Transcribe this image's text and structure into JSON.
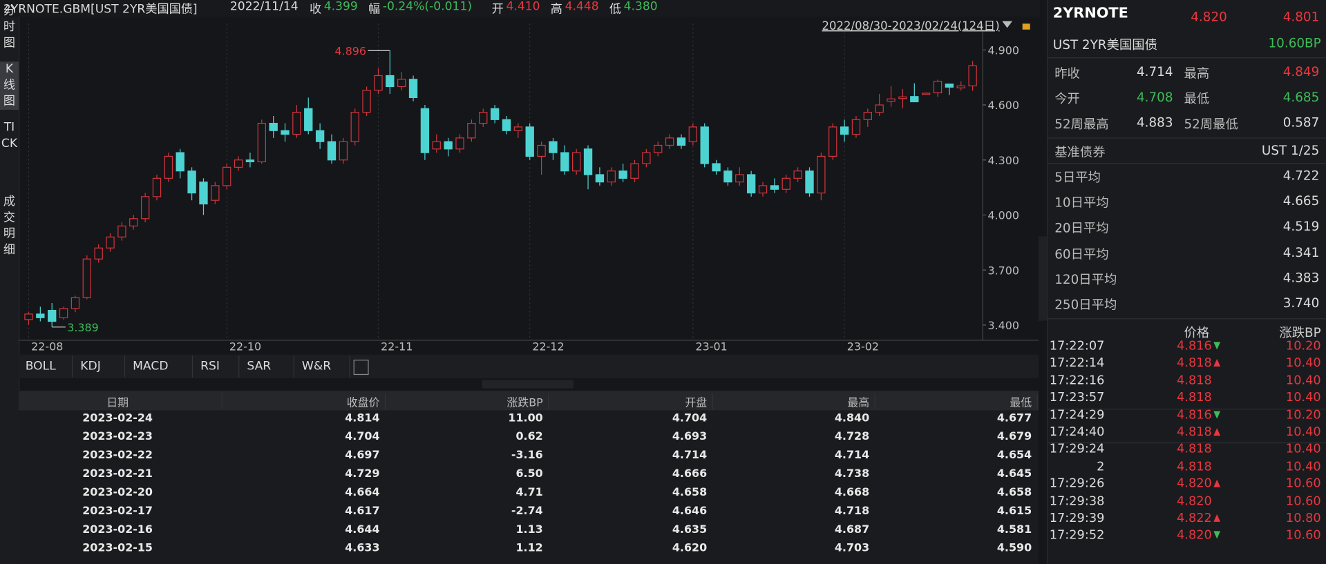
{
  "header": {
    "symbol": "2YRNOTE.GBM[UST 2YR美国国债]",
    "date": "2022/11/14",
    "items": [
      {
        "label": "收",
        "value": "4.399",
        "color": "#3dbb5a"
      },
      {
        "label": "幅",
        "value": "-0.24%(-0.011)",
        "color": "#3dbb5a"
      },
      {
        "label": "开",
        "value": "4.410",
        "color": "#e8373f"
      },
      {
        "label": "高",
        "value": "4.448",
        "color": "#e8373f"
      },
      {
        "label": "低",
        "value": "4.380",
        "color": "#3dbb5a"
      }
    ]
  },
  "side_tabs": [
    "分时图",
    "K线图",
    "TICK",
    "成交明细"
  ],
  "chart_data": {
    "type": "candlestick",
    "date_range": "2022/08/30-2023/02/24(124日)",
    "up_color": "#d3343c",
    "down_color": "#4ed3d3",
    "grid": true,
    "categories": [
      "22-08",
      null,
      null,
      null,
      null,
      null,
      null,
      null,
      null,
      null,
      null,
      null,
      null,
      null,
      null,
      null,
      null,
      "22-10",
      null,
      null,
      null,
      null,
      null,
      null,
      null,
      null,
      null,
      null,
      null,
      null,
      "22-11",
      null,
      null,
      null,
      null,
      null,
      null,
      null,
      null,
      null,
      null,
      null,
      null,
      "22-12",
      null,
      null,
      null,
      null,
      null,
      null,
      null,
      null,
      null,
      null,
      null,
      null,
      null,
      "23-01",
      null,
      null,
      null,
      null,
      null,
      null,
      null,
      null,
      null,
      null,
      null,
      null,
      "23-02",
      null,
      null,
      null,
      null,
      null,
      null,
      null,
      null,
      null,
      null,
      null
    ],
    "candles": [
      [
        3.43,
        3.47,
        3.4,
        3.46
      ],
      [
        3.46,
        3.5,
        3.42,
        3.44
      ],
      [
        3.48,
        3.52,
        3.389,
        3.42
      ],
      [
        3.44,
        3.5,
        3.43,
        3.49
      ],
      [
        3.49,
        3.56,
        3.47,
        3.55
      ],
      [
        3.55,
        3.78,
        3.54,
        3.76
      ],
      [
        3.76,
        3.84,
        3.74,
        3.82
      ],
      [
        3.82,
        3.9,
        3.8,
        3.88
      ],
      [
        3.88,
        3.96,
        3.86,
        3.94
      ],
      [
        3.94,
        4.0,
        3.92,
        3.98
      ],
      [
        3.98,
        4.12,
        3.96,
        4.1
      ],
      [
        4.1,
        4.22,
        4.08,
        4.2
      ],
      [
        4.2,
        4.34,
        4.18,
        4.32
      ],
      [
        4.34,
        4.36,
        4.2,
        4.24
      ],
      [
        4.24,
        4.26,
        4.08,
        4.12
      ],
      [
        4.18,
        4.2,
        4.0,
        4.06
      ],
      [
        4.08,
        4.18,
        4.06,
        4.16
      ],
      [
        4.16,
        4.28,
        4.14,
        4.26
      ],
      [
        4.26,
        4.32,
        4.24,
        4.3
      ],
      [
        4.3,
        4.34,
        4.26,
        4.29
      ],
      [
        4.29,
        4.52,
        4.28,
        4.5
      ],
      [
        4.5,
        4.54,
        4.42,
        4.46
      ],
      [
        4.46,
        4.5,
        4.4,
        4.44
      ],
      [
        4.44,
        4.6,
        4.42,
        4.56
      ],
      [
        4.58,
        4.64,
        4.44,
        4.46
      ],
      [
        4.46,
        4.5,
        4.36,
        4.4
      ],
      [
        4.4,
        4.44,
        4.28,
        4.3
      ],
      [
        4.3,
        4.42,
        4.28,
        4.4
      ],
      [
        4.4,
        4.58,
        4.38,
        4.56
      ],
      [
        4.56,
        4.7,
        4.54,
        4.68
      ],
      [
        4.68,
        4.8,
        4.66,
        4.76
      ],
      [
        4.76,
        4.896,
        4.66,
        4.7
      ],
      [
        4.7,
        4.78,
        4.68,
        4.74
      ],
      [
        4.74,
        4.76,
        4.62,
        4.64
      ],
      [
        4.58,
        4.6,
        4.3,
        4.34
      ],
      [
        4.36,
        4.44,
        4.34,
        4.4
      ],
      [
        4.4,
        4.42,
        4.32,
        4.36
      ],
      [
        4.36,
        4.44,
        4.34,
        4.42
      ],
      [
        4.42,
        4.52,
        4.4,
        4.5
      ],
      [
        4.5,
        4.58,
        4.48,
        4.56
      ],
      [
        4.58,
        4.6,
        4.5,
        4.52
      ],
      [
        4.52,
        4.54,
        4.44,
        4.46
      ],
      [
        4.46,
        4.5,
        4.42,
        4.48
      ],
      [
        4.48,
        4.5,
        4.3,
        4.32
      ],
      [
        4.32,
        4.4,
        4.22,
        4.38
      ],
      [
        4.4,
        4.42,
        4.3,
        4.34
      ],
      [
        4.34,
        4.38,
        4.22,
        4.24
      ],
      [
        4.24,
        4.36,
        4.22,
        4.34
      ],
      [
        4.36,
        4.38,
        4.14,
        4.22
      ],
      [
        4.22,
        4.26,
        4.16,
        4.18
      ],
      [
        4.18,
        4.26,
        4.16,
        4.24
      ],
      [
        4.24,
        4.28,
        4.18,
        4.2
      ],
      [
        4.2,
        4.3,
        4.18,
        4.28
      ],
      [
        4.28,
        4.36,
        4.26,
        4.34
      ],
      [
        4.34,
        4.4,
        4.32,
        4.38
      ],
      [
        4.38,
        4.44,
        4.36,
        4.42
      ],
      [
        4.42,
        4.44,
        4.36,
        4.38
      ],
      [
        4.4,
        4.5,
        4.38,
        4.48
      ],
      [
        4.48,
        4.5,
        4.26,
        4.28
      ],
      [
        4.28,
        4.3,
        4.22,
        4.24
      ],
      [
        4.24,
        4.26,
        4.16,
        4.18
      ],
      [
        4.18,
        4.26,
        4.16,
        4.22
      ],
      [
        4.22,
        4.24,
        4.1,
        4.12
      ],
      [
        4.12,
        4.18,
        4.1,
        4.16
      ],
      [
        4.16,
        4.2,
        4.12,
        4.14
      ],
      [
        4.14,
        4.22,
        4.12,
        4.2
      ],
      [
        4.2,
        4.26,
        4.18,
        4.24
      ],
      [
        4.24,
        4.26,
        4.1,
        4.12
      ],
      [
        4.12,
        4.34,
        4.08,
        4.32
      ],
      [
        4.32,
        4.5,
        4.3,
        4.48
      ],
      [
        4.48,
        4.52,
        4.4,
        4.44
      ],
      [
        4.44,
        4.54,
        4.42,
        4.52
      ],
      [
        4.52,
        4.58,
        4.48,
        4.56
      ],
      [
        4.56,
        4.66,
        4.54,
        4.6
      ],
      [
        4.62,
        4.703,
        4.59,
        4.633
      ],
      [
        4.635,
        4.687,
        4.581,
        4.644
      ],
      [
        4.646,
        4.718,
        4.615,
        4.617
      ],
      [
        4.658,
        4.668,
        4.658,
        4.664
      ],
      [
        4.666,
        4.738,
        4.645,
        4.729
      ],
      [
        4.714,
        4.714,
        4.654,
        4.697
      ],
      [
        4.693,
        4.728,
        4.679,
        4.704
      ],
      [
        4.704,
        4.84,
        4.677,
        4.814
      ]
    ],
    "max_label": "4.896",
    "min_label": "3.389",
    "ylim": [
      3.34,
      4.965
    ],
    "yticks": [
      {
        "value": 3.4,
        "label": "3.400"
      },
      {
        "value": 3.7,
        "label": "3.700"
      },
      {
        "value": 4.0,
        "label": "4.000"
      },
      {
        "value": 4.3,
        "label": "4.300"
      },
      {
        "value": 4.6,
        "label": "4.600"
      },
      {
        "value": 4.9,
        "label": "4.900"
      }
    ]
  },
  "indicator_tabs": [
    "BOLL",
    "KDJ",
    "MACD",
    "RSI",
    "SAR",
    "W&R"
  ],
  "table": {
    "columns": [
      "日期",
      "收盘价",
      "涨跌BP",
      "开盘",
      "最高",
      "最低"
    ],
    "rows": [
      [
        "2023-02-24",
        "4.814",
        "11.00",
        "4.704",
        "4.840",
        "4.677"
      ],
      [
        "2023-02-23",
        "4.704",
        "0.62",
        "4.693",
        "4.728",
        "4.679"
      ],
      [
        "2023-02-22",
        "4.697",
        "-3.16",
        "4.714",
        "4.714",
        "4.654"
      ],
      [
        "2023-02-21",
        "4.729",
        "6.50",
        "4.666",
        "4.738",
        "4.645"
      ],
      [
        "2023-02-20",
        "4.664",
        "4.71",
        "4.658",
        "4.668",
        "4.658"
      ],
      [
        "2023-02-17",
        "4.617",
        "-2.74",
        "4.646",
        "4.718",
        "4.615"
      ],
      [
        "2023-02-16",
        "4.644",
        "1.13",
        "4.635",
        "4.687",
        "4.581"
      ],
      [
        "2023-02-15",
        "4.633",
        "1.12",
        "4.620",
        "4.703",
        "4.590"
      ]
    ]
  },
  "quote": {
    "name": "2YRNOTE",
    "price": "4.820",
    "price2": "4.801",
    "full_name": "UST 2YR美国国债",
    "change": "10.60BP",
    "stats": [
      [
        {
          "label": "昨收",
          "value": "4.714",
          "color": "#dddddd"
        },
        {
          "label": "最高",
          "value": "4.849",
          "color": "#e8373f"
        }
      ],
      [
        {
          "label": "今开",
          "value": "4.708",
          "color": "#3dbb5a"
        },
        {
          "label": "最低",
          "value": "4.685",
          "color": "#3dbb5a"
        }
      ],
      [
        {
          "label": "52周最高",
          "value": "4.883",
          "color": "#dddddd"
        },
        {
          "label": "52周最低",
          "value": "0.587",
          "color": "#dddddd"
        }
      ]
    ],
    "benchmark": {
      "label": "基准债券",
      "value": "UST 1/25"
    },
    "averages": [
      {
        "label": "5日平均",
        "value": "4.722"
      },
      {
        "label": "10日平均",
        "value": "4.665"
      },
      {
        "label": "20日平均",
        "value": "4.519"
      },
      {
        "label": "60日平均",
        "value": "4.341"
      },
      {
        "label": "120日平均",
        "value": "4.383"
      },
      {
        "label": "250日平均",
        "value": "3.740"
      }
    ]
  },
  "trades": {
    "columns": [
      "价格",
      "涨跌BP"
    ],
    "rows": [
      {
        "time": "17:22:07",
        "price": "4.816",
        "change": "10.20",
        "arrow": "down"
      },
      {
        "time": "17:22:14",
        "price": "4.818",
        "change": "10.40",
        "arrow": "up"
      },
      {
        "time": "17:22:16",
        "price": "4.818",
        "change": "10.40"
      },
      {
        "time": "17:23:57",
        "price": "4.818",
        "change": "10.40"
      },
      {
        "time": "17:24:29",
        "price": "4.816",
        "change": "10.20",
        "arrow": "down"
      },
      {
        "time": "17:24:40",
        "price": "4.818",
        "change": "10.40",
        "arrow": "up"
      },
      {
        "time": "17:29:24",
        "price": "4.818",
        "change": "10.40"
      },
      {
        "time": "2",
        "price": "4.818",
        "change": "10.40"
      },
      {
        "time": "17:29:26",
        "price": "4.820",
        "change": "10.60",
        "arrow": "up"
      },
      {
        "time": "17:29:38",
        "price": "4.820",
        "change": "10.60"
      },
      {
        "time": "17:29:39",
        "price": "4.822",
        "change": "10.80",
        "arrow": "up"
      },
      {
        "time": "17:29:52",
        "price": "4.820",
        "change": "10.60",
        "arrow": "down"
      }
    ]
  }
}
